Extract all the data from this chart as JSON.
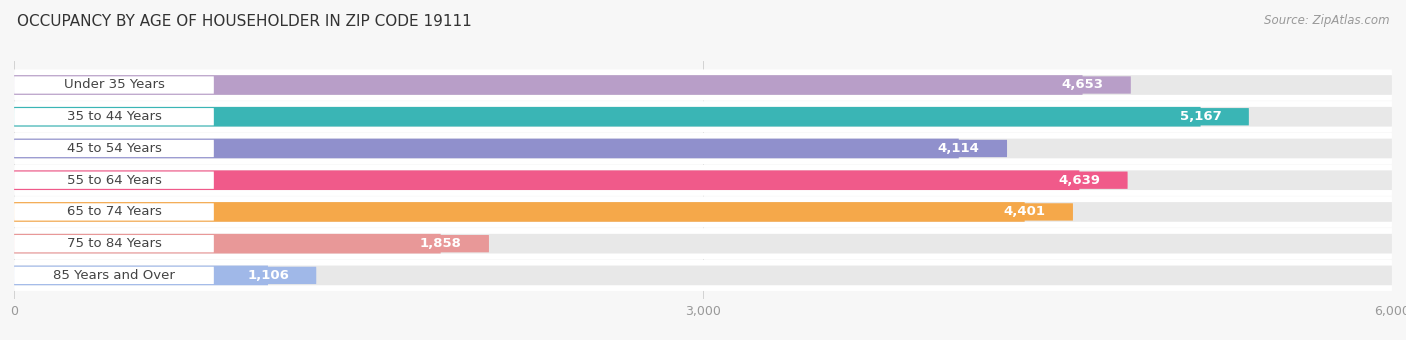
{
  "title": "OCCUPANCY BY AGE OF HOUSEHOLDER IN ZIP CODE 19111",
  "source": "Source: ZipAtlas.com",
  "categories": [
    "Under 35 Years",
    "35 to 44 Years",
    "45 to 54 Years",
    "55 to 64 Years",
    "65 to 74 Years",
    "75 to 84 Years",
    "85 Years and Over"
  ],
  "values": [
    4653,
    5167,
    4114,
    4639,
    4401,
    1858,
    1106
  ],
  "bar_colors": [
    "#b89ec8",
    "#3ab5b5",
    "#9090cc",
    "#f05a8a",
    "#f5a84a",
    "#e89898",
    "#a0b8e8"
  ],
  "xlim": [
    0,
    6000
  ],
  "xticks": [
    0,
    3000,
    6000
  ],
  "background_color": "#f7f7f7",
  "track_color": "#e8e8e8",
  "bar_row_bg": "#ffffff",
  "title_fontsize": 11,
  "source_fontsize": 8.5,
  "label_fontsize": 9.5,
  "value_fontsize": 9.5
}
